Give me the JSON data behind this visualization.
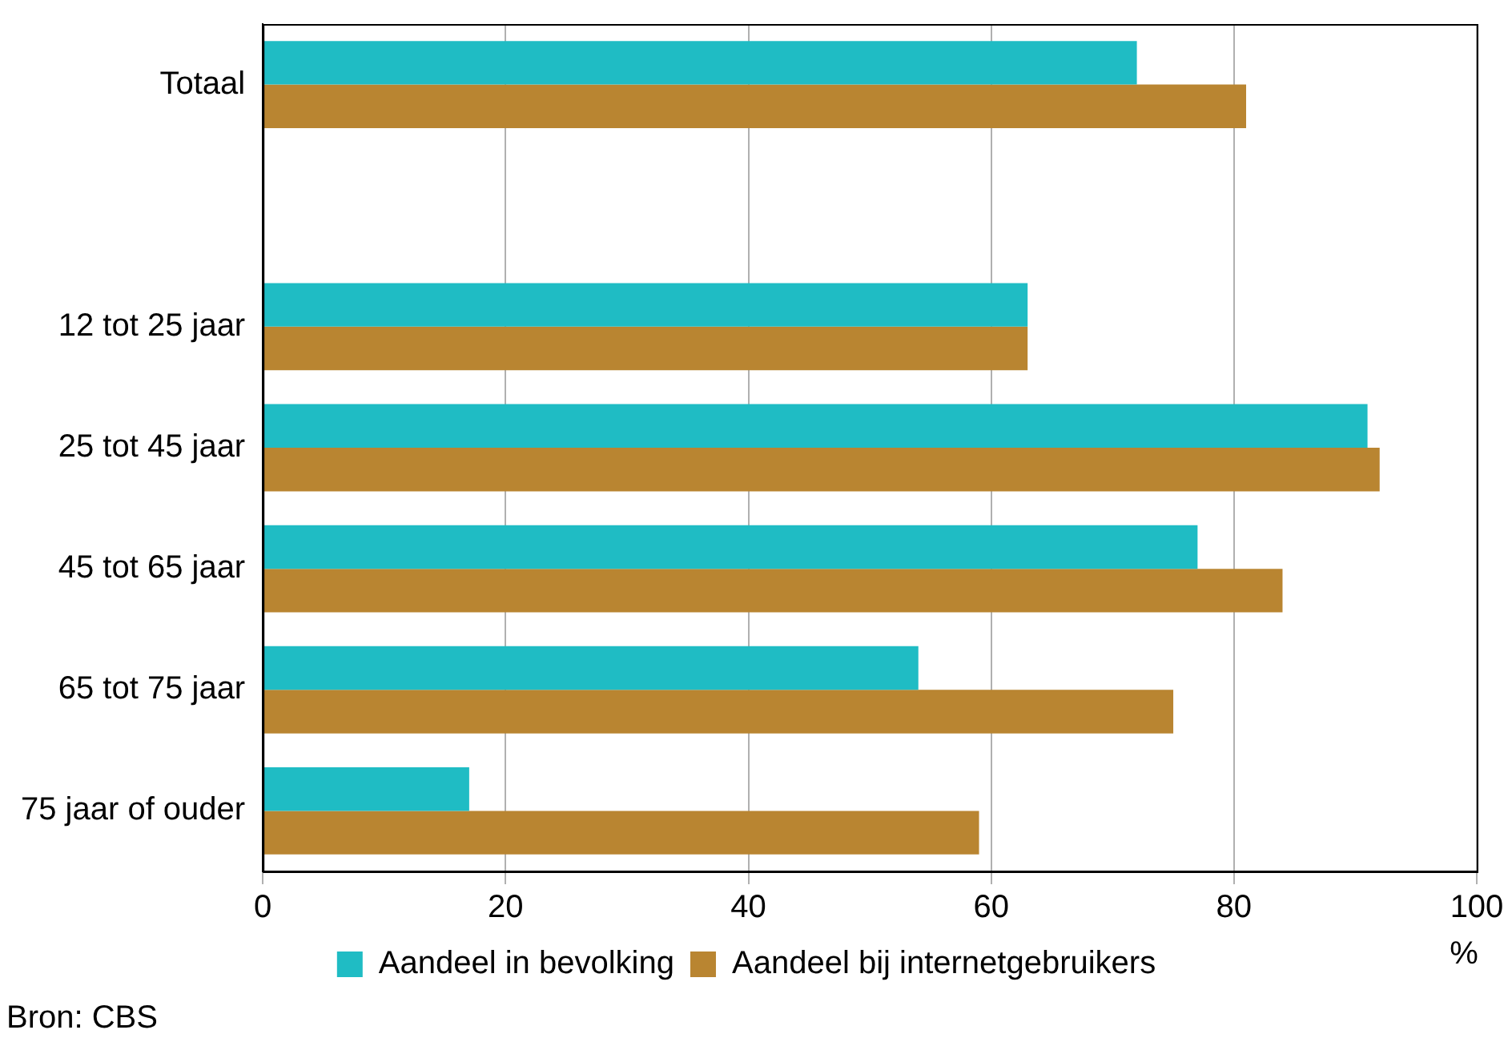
{
  "chart_data": {
    "type": "bar",
    "orientation": "horizontal",
    "categories": [
      "Totaal",
      null,
      "12 tot 25 jaar",
      "25 tot 45 jaar",
      "45 tot 65 jaar",
      "65 tot 75 jaar",
      "75 jaar of ouder"
    ],
    "series": [
      {
        "name": "Aandeel in bevolking",
        "color": "#1fbcc4",
        "values": [
          72,
          null,
          63,
          91,
          77,
          54,
          17
        ]
      },
      {
        "name": "Aandeel bij internetgebruikers",
        "color": "#b98531",
        "values": [
          81,
          null,
          63,
          92,
          84,
          75,
          59
        ]
      }
    ],
    "xlim": [
      0,
      100
    ],
    "xticks": [
      0,
      20,
      40,
      60,
      80,
      100
    ],
    "xlabel": "%",
    "grid": "x",
    "legend": "bottom",
    "annotations": [
      "Bron: CBS"
    ]
  }
}
